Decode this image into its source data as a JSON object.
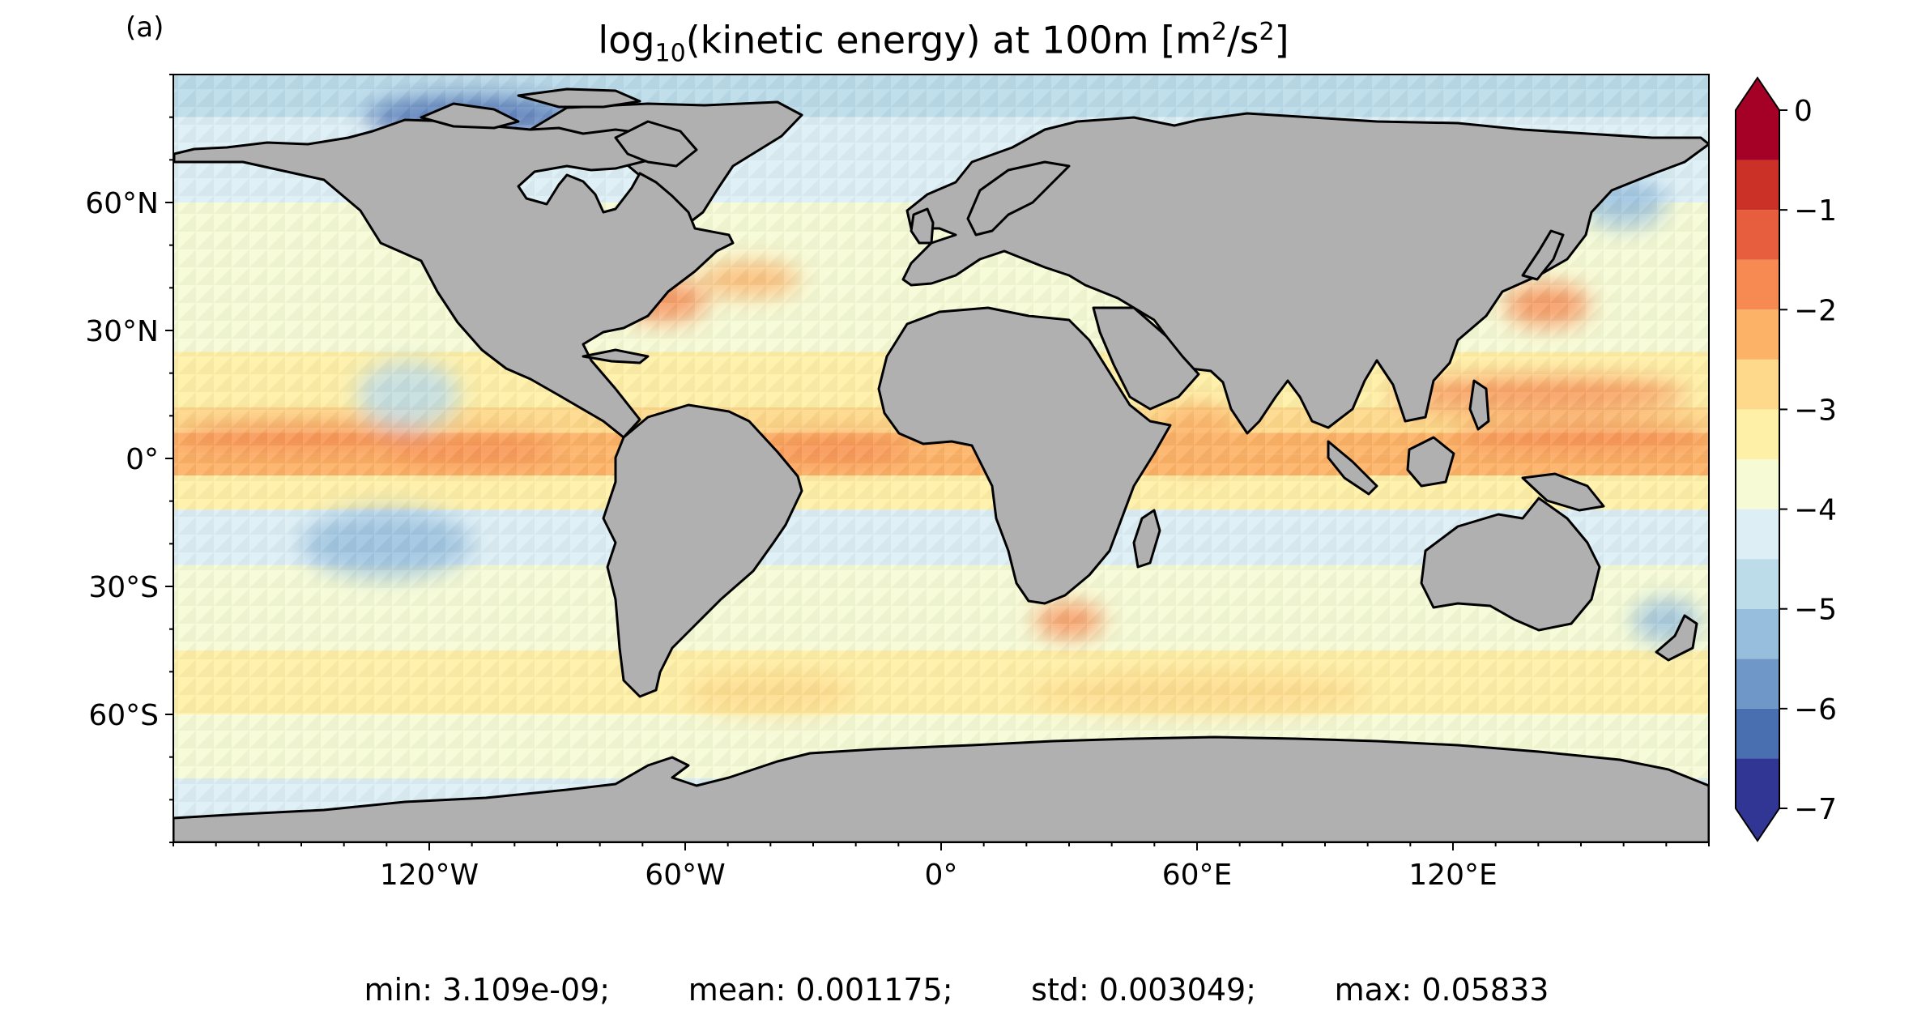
{
  "panel_label": "(a)",
  "title": {
    "prefix": "log",
    "sub": "10",
    "middle": "(kinetic energy) at 100m [m",
    "sup1": "2",
    "mid2": "/s",
    "sup2": "2",
    "suffix": "]"
  },
  "stats": {
    "min": "min: 3.109e-09;",
    "mean": "mean: 0.001175;",
    "std": "std: 0.003049;",
    "max": "max: 0.05833"
  },
  "map": {
    "projection": "plate-carree",
    "lon_range": [
      -180,
      180
    ],
    "lat_range": [
      -90,
      90
    ],
    "x_ticks": [
      {
        "value": -120,
        "label": "120°W"
      },
      {
        "value": -60,
        "label": "60°W"
      },
      {
        "value": 0,
        "label": "0°"
      },
      {
        "value": 60,
        "label": "60°E"
      },
      {
        "value": 120,
        "label": "120°E"
      }
    ],
    "y_ticks": [
      {
        "value": 60,
        "label": "60°N"
      },
      {
        "value": 30,
        "label": "30°N"
      },
      {
        "value": 0,
        "label": "0°"
      },
      {
        "value": -30,
        "label": "30°S"
      },
      {
        "value": -60,
        "label": "60°S"
      }
    ],
    "land_color": "#b0b0b0",
    "coast_color": "#000000",
    "bands": [
      {
        "lat_from": 90,
        "lat_to": 80,
        "level": -4.6
      },
      {
        "lat_from": 80,
        "lat_to": 60,
        "level": -4.2
      },
      {
        "lat_from": 60,
        "lat_to": 40,
        "level": -3.7
      },
      {
        "lat_from": 40,
        "lat_to": 25,
        "level": -3.9
      },
      {
        "lat_from": 25,
        "lat_to": 12,
        "level": -3.3
      },
      {
        "lat_from": 12,
        "lat_to": 6,
        "level": -2.6
      },
      {
        "lat_from": 6,
        "lat_to": 1,
        "level": -2.2
      },
      {
        "lat_from": 1,
        "lat_to": -4,
        "level": -2.5
      },
      {
        "lat_from": -4,
        "lat_to": -12,
        "level": -3.2
      },
      {
        "lat_from": -12,
        "lat_to": -25,
        "level": -4.1
      },
      {
        "lat_from": -25,
        "lat_to": -45,
        "level": -3.6
      },
      {
        "lat_from": -45,
        "lat_to": -60,
        "level": -3.1
      },
      {
        "lat_from": -60,
        "lat_to": -75,
        "level": -3.7
      },
      {
        "lat_from": -75,
        "lat_to": -90,
        "level": -4.4
      }
    ],
    "features": [
      {
        "lon": -150,
        "lat": 5,
        "rx": 30,
        "ry": 3,
        "level": -1.9
      },
      {
        "lon": -110,
        "lat": 2,
        "rx": 20,
        "ry": 3,
        "level": -1.7
      },
      {
        "lon": 140,
        "lat": 15,
        "rx": 35,
        "ry": 4,
        "level": -2.0
      },
      {
        "lon": 150,
        "lat": 5,
        "rx": 30,
        "ry": 3,
        "level": -1.9
      },
      {
        "lon": -25,
        "lat": 2,
        "rx": 18,
        "ry": 3,
        "level": -1.9
      },
      {
        "lon": -65,
        "lat": 37,
        "rx": 10,
        "ry": 5,
        "level": -1.9
      },
      {
        "lon": -45,
        "lat": 42,
        "rx": 12,
        "ry": 4,
        "level": -2.1
      },
      {
        "lon": 142,
        "lat": 36,
        "rx": 10,
        "ry": 5,
        "level": -1.9
      },
      {
        "lon": 60,
        "lat": 5,
        "rx": 10,
        "ry": 8,
        "level": -2.3
      },
      {
        "lon": 30,
        "lat": -38,
        "rx": 8,
        "ry": 4,
        "level": -2.0
      },
      {
        "lon": -130,
        "lat": -20,
        "rx": 20,
        "ry": 8,
        "level": -5.4
      },
      {
        "lon": -125,
        "lat": 15,
        "rx": 12,
        "ry": 8,
        "level": -5.0
      },
      {
        "lon": 170,
        "lat": -38,
        "rx": 8,
        "ry": 5,
        "level": -5.3
      },
      {
        "lon": -110,
        "lat": 80,
        "rx": 25,
        "ry": 5,
        "level": -6.1
      },
      {
        "lon": 160,
        "lat": 60,
        "rx": 10,
        "ry": 6,
        "level": -5.4
      },
      {
        "lon": 60,
        "lat": -55,
        "rx": 40,
        "ry": 5,
        "level": -2.9
      },
      {
        "lon": -40,
        "lat": -55,
        "rx": 20,
        "ry": 5,
        "level": -2.8
      }
    ]
  },
  "colorbar": {
    "levels": [
      -7,
      -6.5,
      -6,
      -5.5,
      -5,
      -4.5,
      -4,
      -3.5,
      -3,
      -2.5,
      -2,
      -1.5,
      -1,
      -0.5,
      0
    ],
    "colors": [
      "#313695",
      "#4a6fb0",
      "#6f98c8",
      "#97bedd",
      "#bcdcea",
      "#ddeff5",
      "#f6fbd6",
      "#fff0a8",
      "#fed98b",
      "#fdb367",
      "#f78a52",
      "#e65e3d",
      "#cc3128",
      "#a50026"
    ],
    "under_color": "#313695",
    "over_color": "#a50026",
    "extend": "both",
    "tick_values": [
      0,
      -1,
      -2,
      -3,
      -4,
      -5,
      -6,
      -7
    ],
    "tick_labels": [
      "0",
      "−1",
      "−2",
      "−3",
      "−4",
      "−5",
      "−6",
      "−7"
    ]
  }
}
